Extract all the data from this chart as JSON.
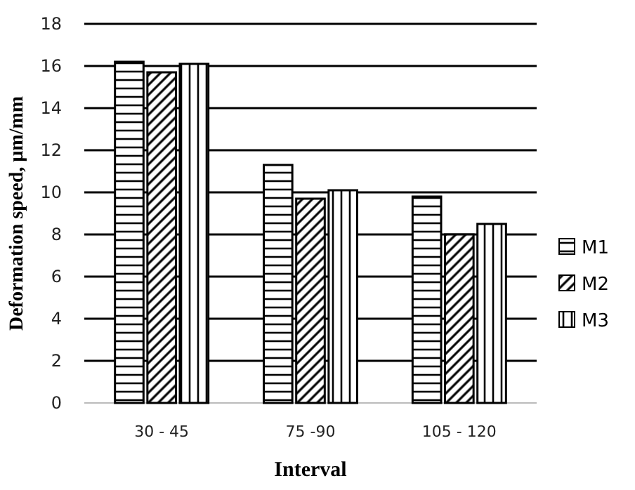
{
  "chart_data": {
    "type": "bar",
    "xlabel": "Interval",
    "ylabel": "Deformation speed, µm/mm",
    "categories": [
      "30 - 45",
      "75 -90",
      "105 - 120"
    ],
    "series": [
      {
        "name": "M1",
        "color": "#000000",
        "values": [
          16.2,
          11.3,
          9.8
        ]
      },
      {
        "name": "M2",
        "color": "#000000",
        "values": [
          15.7,
          9.7,
          8.0
        ]
      },
      {
        "name": "M3",
        "color": "#000000",
        "values": [
          16.1,
          10.1,
          8.5
        ]
      }
    ],
    "ylim": [
      0,
      18
    ],
    "yticks": [
      0,
      2,
      4,
      6,
      8,
      10,
      12,
      14,
      16,
      18
    ],
    "grid": "y",
    "legend": "right"
  }
}
